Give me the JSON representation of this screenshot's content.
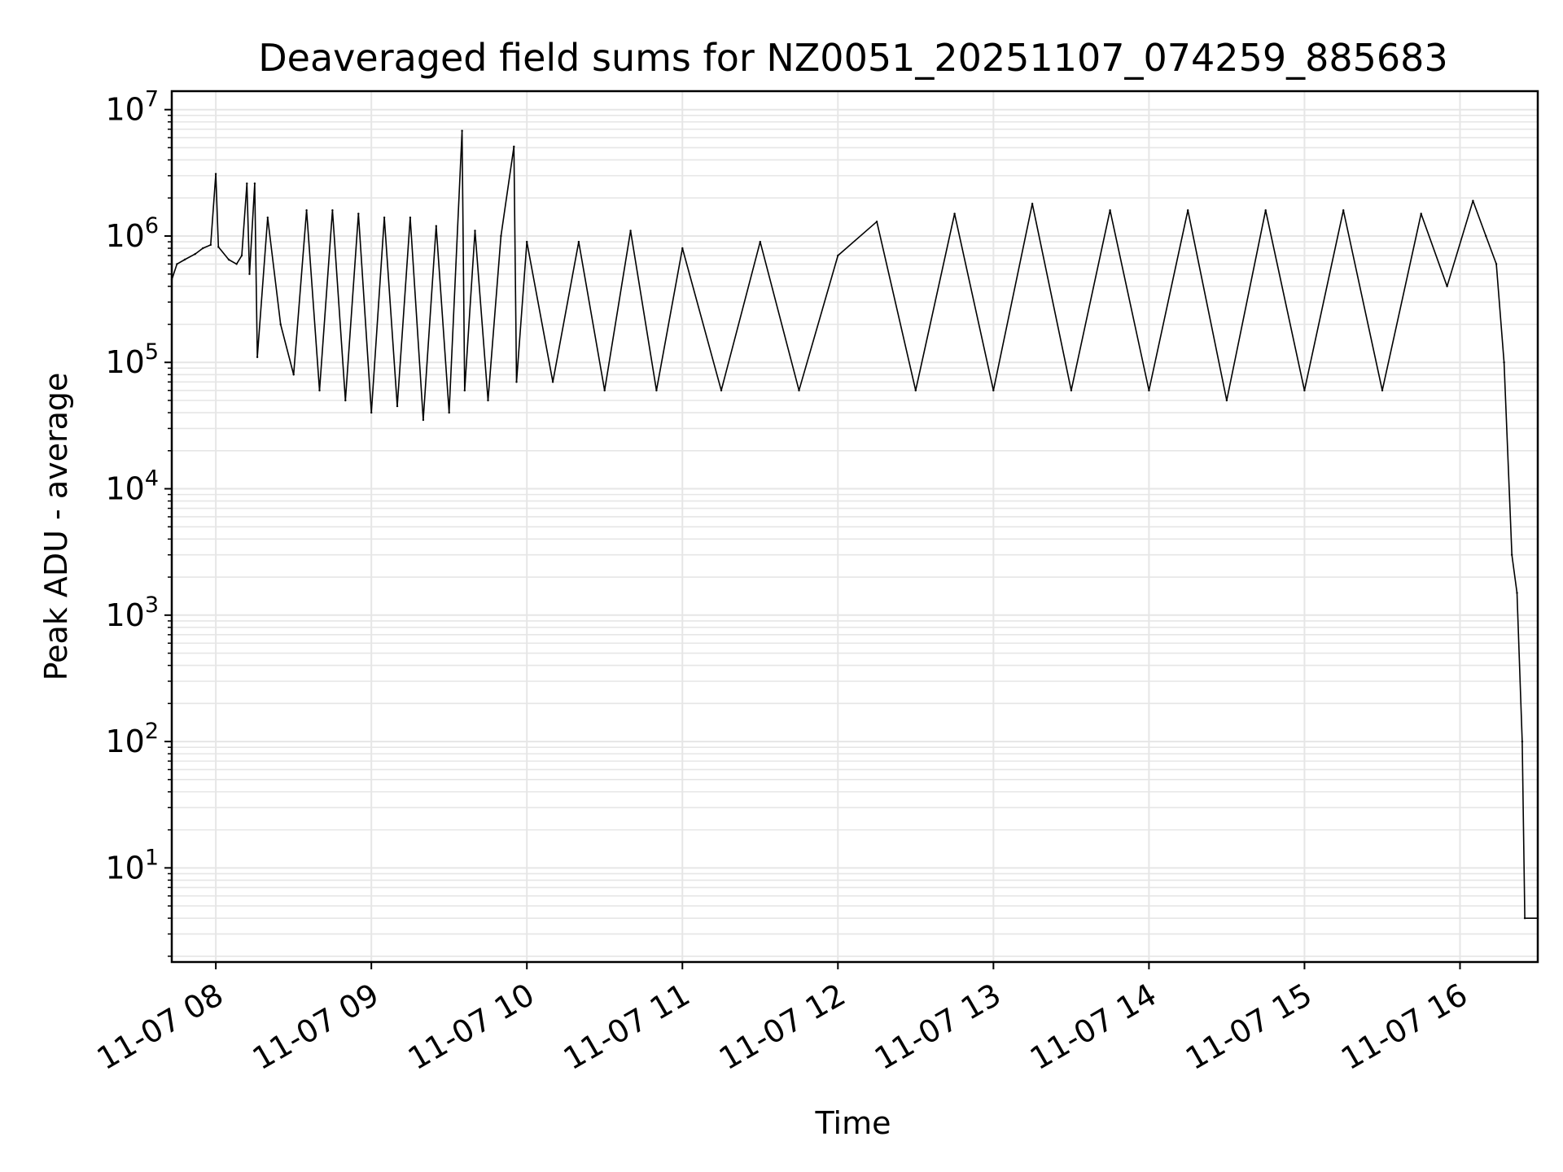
{
  "chart_data": {
    "type": "line",
    "title": "Deaveraged field sums for NZ0051_20251107_074259_885683",
    "xlabel": "Time",
    "ylabel": "Peak ADU - average",
    "yscale": "log",
    "grid": true,
    "grid_minor": true,
    "line_color": "#000000",
    "grid_color": "#e6e6e6",
    "xlim": [
      "2025-11-07 07:43",
      "2025-11-07 16:30"
    ],
    "ylim": [
      1.8,
      14000000
    ],
    "xticks": [
      {
        "value": "2025-11-07 08:00",
        "label": "11-07 08"
      },
      {
        "value": "2025-11-07 09:00",
        "label": "11-07 09"
      },
      {
        "value": "2025-11-07 10:00",
        "label": "11-07 10"
      },
      {
        "value": "2025-11-07 11:00",
        "label": "11-07 11"
      },
      {
        "value": "2025-11-07 12:00",
        "label": "11-07 12"
      },
      {
        "value": "2025-11-07 13:00",
        "label": "11-07 13"
      },
      {
        "value": "2025-11-07 14:00",
        "label": "11-07 14"
      },
      {
        "value": "2025-11-07 15:00",
        "label": "11-07 15"
      },
      {
        "value": "2025-11-07 16:00",
        "label": "11-07 16"
      }
    ],
    "yticks": [
      {
        "value": 10,
        "base": "10",
        "exp": "1"
      },
      {
        "value": 100,
        "base": "10",
        "exp": "2"
      },
      {
        "value": 1000,
        "base": "10",
        "exp": "3"
      },
      {
        "value": 10000,
        "base": "10",
        "exp": "4"
      },
      {
        "value": 100000,
        "base": "10",
        "exp": "5"
      },
      {
        "value": 1000000,
        "base": "10",
        "exp": "6"
      },
      {
        "value": 10000000,
        "base": "10",
        "exp": "7"
      }
    ],
    "series": [
      {
        "points": [
          [
            "2025-11-07 07:43",
            450000
          ],
          [
            "2025-11-07 07:45",
            600000
          ],
          [
            "2025-11-07 07:48",
            650000
          ],
          [
            "2025-11-07 07:52",
            720000
          ],
          [
            "2025-11-07 07:55",
            800000
          ],
          [
            "2025-11-07 07:58",
            850000
          ],
          [
            "2025-11-07 08:00",
            3100000
          ],
          [
            "2025-11-07 08:01",
            820000
          ],
          [
            "2025-11-07 08:05",
            650000
          ],
          [
            "2025-11-07 08:08",
            600000
          ],
          [
            "2025-11-07 08:10",
            700000
          ],
          [
            "2025-11-07 08:12",
            2600000
          ],
          [
            "2025-11-07 08:13",
            500000
          ],
          [
            "2025-11-07 08:15",
            2600000
          ],
          [
            "2025-11-07 08:16",
            110000
          ],
          [
            "2025-11-07 08:20",
            1400000
          ],
          [
            "2025-11-07 08:25",
            200000
          ],
          [
            "2025-11-07 08:30",
            80000
          ],
          [
            "2025-11-07 08:35",
            1600000
          ],
          [
            "2025-11-07 08:40",
            60000
          ],
          [
            "2025-11-07 08:45",
            1600000
          ],
          [
            "2025-11-07 08:50",
            50000
          ],
          [
            "2025-11-07 08:55",
            1500000
          ],
          [
            "2025-11-07 09:00",
            40000
          ],
          [
            "2025-11-07 09:05",
            1400000
          ],
          [
            "2025-11-07 09:10",
            45000
          ],
          [
            "2025-11-07 09:15",
            1400000
          ],
          [
            "2025-11-07 09:20",
            35000
          ],
          [
            "2025-11-07 09:25",
            1200000
          ],
          [
            "2025-11-07 09:30",
            40000
          ],
          [
            "2025-11-07 09:35",
            6800000
          ],
          [
            "2025-11-07 09:36",
            60000
          ],
          [
            "2025-11-07 09:40",
            1100000
          ],
          [
            "2025-11-07 09:45",
            50000
          ],
          [
            "2025-11-07 09:50",
            1000000
          ],
          [
            "2025-11-07 09:55",
            5100000
          ],
          [
            "2025-11-07 09:56",
            70000
          ],
          [
            "2025-11-07 10:00",
            900000
          ],
          [
            "2025-11-07 10:10",
            70000
          ],
          [
            "2025-11-07 10:20",
            900000
          ],
          [
            "2025-11-07 10:30",
            60000
          ],
          [
            "2025-11-07 10:40",
            1100000
          ],
          [
            "2025-11-07 10:50",
            60000
          ],
          [
            "2025-11-07 11:00",
            800000
          ],
          [
            "2025-11-07 11:15",
            60000
          ],
          [
            "2025-11-07 11:30",
            900000
          ],
          [
            "2025-11-07 11:45",
            60000
          ],
          [
            "2025-11-07 12:00",
            700000
          ],
          [
            "2025-11-07 12:15",
            1300000
          ],
          [
            "2025-11-07 12:30",
            60000
          ],
          [
            "2025-11-07 12:45",
            1500000
          ],
          [
            "2025-11-07 13:00",
            60000
          ],
          [
            "2025-11-07 13:15",
            1800000
          ],
          [
            "2025-11-07 13:30",
            60000
          ],
          [
            "2025-11-07 13:45",
            1600000
          ],
          [
            "2025-11-07 14:00",
            60000
          ],
          [
            "2025-11-07 14:15",
            1600000
          ],
          [
            "2025-11-07 14:30",
            50000
          ],
          [
            "2025-11-07 14:45",
            1600000
          ],
          [
            "2025-11-07 15:00",
            60000
          ],
          [
            "2025-11-07 15:15",
            1600000
          ],
          [
            "2025-11-07 15:30",
            60000
          ],
          [
            "2025-11-07 15:45",
            1500000
          ],
          [
            "2025-11-07 15:55",
            400000
          ],
          [
            "2025-11-07 16:05",
            1900000
          ],
          [
            "2025-11-07 16:10",
            1000000
          ],
          [
            "2025-11-07 16:14",
            600000
          ],
          [
            "2025-11-07 16:17",
            100000
          ],
          [
            "2025-11-07 16:20",
            3000
          ],
          [
            "2025-11-07 16:22",
            1500
          ],
          [
            "2025-11-07 16:24",
            100
          ],
          [
            "2025-11-07 16:25",
            4
          ],
          [
            "2025-11-07 16:30",
            4
          ]
        ]
      }
    ]
  }
}
